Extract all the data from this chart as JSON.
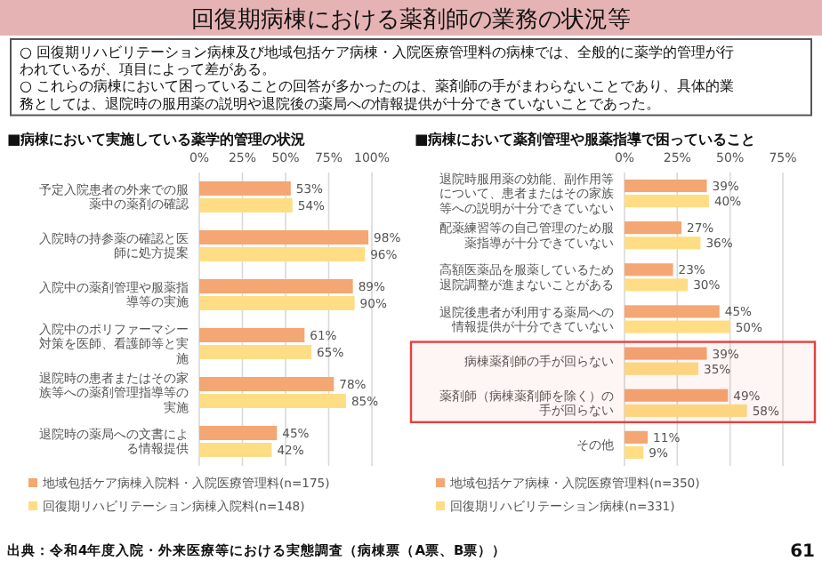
{
  "chart_data": [
    {
      "type": "other",
      "title": "回復期病棟における薬剤師の業務の状況等",
      "annotations": [
        "○ 回復期リハビリテーション病棟及び地域包括ケア病棟・入院医療管理料の病棟では、全般的に薬学的管理が行われているが、項目によって差がある。",
        "○ これらの病棟において困っていることの回答が多かったのは、薬剤師の手がまわらないことであり、具体的業務としては、退院時の服用薬の説明や退院後の薬局への情報提供が十分できていないことであった。",
        "出典：令和4年度入院・外来医療等における実態調査（病棟票（A票、B票））",
        "61"
      ]
    },
    {
      "type": "bar",
      "orientation": "horizontal",
      "title": "■病棟において実施している薬学的管理の状況",
      "categories": [
        "予定入院患者の外来での服薬中の薬剤の確認",
        "入院時の持参薬の確認と医師に処方提案",
        "入院中の薬剤管理や服薬指導等の実施",
        "入院中のポリファーマシー対策を医師、看護師等と実施",
        "退院時の患者またはその家族等への薬剤管理指導等の実施",
        "退院時の薬局への文書による情報提供"
      ],
      "series": [
        {
          "name": "地域包括ケア病棟入院料・入院医療管理料(n=175)",
          "color": "#f4a673",
          "values": [
            53,
            98,
            89,
            61,
            78,
            45
          ],
          "value_labels": [
            "53%",
            "98%",
            "89%",
            "61%",
            "78%",
            "45%"
          ]
        },
        {
          "name": "回復期リハビリテーション病棟入院料(n=148)",
          "color": "#fedd84",
          "values": [
            54,
            96,
            90,
            65,
            85,
            42
          ],
          "value_labels": [
            "54%",
            "96%",
            "90%",
            "65%",
            "85%",
            "42%"
          ]
        }
      ],
      "xlim": [
        0,
        100
      ],
      "xticks": [
        {
          "value": 0,
          "label": "0%"
        },
        {
          "value": 25,
          "label": "25%"
        },
        {
          "value": 50,
          "label": "50%"
        },
        {
          "value": 75,
          "label": "75%"
        },
        {
          "value": 100,
          "label": "100%"
        }
      ],
      "grid": "x",
      "legend": "bottom"
    },
    {
      "type": "bar",
      "orientation": "horizontal",
      "title": "■病棟において薬剤管理や服薬指導で困っていること",
      "categories": [
        "退院時服用薬の効能、副作用等について、患者またはその家族等への説明が十分できていない",
        "配薬練習等の自己管理のため服薬指導が十分できていない",
        "高額医薬品を服薬しているため退院調整が進まないことがある",
        "退院後患者が利用する薬局への情報提供が十分できていない",
        "病棟薬剤師の手が回らない",
        "薬剤師（病棟薬剤師を除く）の手が回らない",
        "その他"
      ],
      "series": [
        {
          "name": "地域包括ケア病棟・入院医療管理料(n=350)",
          "color": "#f4a673",
          "values": [
            39,
            27,
            23,
            45,
            39,
            49,
            11
          ],
          "value_labels": [
            "39%",
            "27%",
            "23%",
            "45%",
            "39%",
            "49%",
            "11%"
          ]
        },
        {
          "name": "回復期リハビリテーション病棟(n=331)",
          "color": "#fedd84",
          "values": [
            40,
            36,
            30,
            50,
            35,
            58,
            9
          ],
          "value_labels": [
            "40%",
            "36%",
            "30%",
            "50%",
            "35%",
            "58%",
            "9%"
          ]
        }
      ],
      "xlim": [
        0,
        75
      ],
      "xticks": [
        {
          "value": 0,
          "label": "0%"
        },
        {
          "value": 25,
          "label": "25%"
        },
        {
          "value": 50,
          "label": "50%"
        },
        {
          "value": 75,
          "label": "75%"
        }
      ],
      "grid": "x",
      "legend": "bottom",
      "bands": [
        {
          "axis": "y",
          "from": "病棟薬剤師の手が回らない",
          "to": "薬剤師（病棟薬剤師を除く）の手が回らない",
          "color": "#e8403c"
        }
      ]
    }
  ]
}
